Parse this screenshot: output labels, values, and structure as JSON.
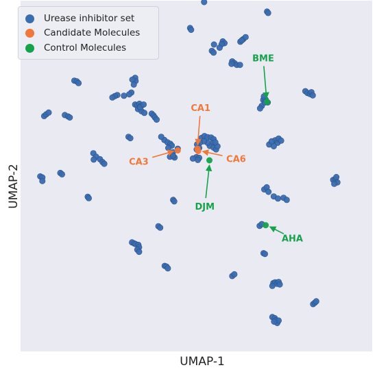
{
  "chart_data": {
    "type": "scatter",
    "title": "",
    "xlabel": "UMAP-1",
    "ylabel": "UMAP-2",
    "xlim": [
      0,
      100
    ],
    "ylim": [
      0,
      100
    ],
    "grid": false,
    "legend_position": "top-left",
    "colors": {
      "background": "#eaeaf2",
      "urease": "#3a6db0",
      "candidate": "#f0783a",
      "control": "#15a24a"
    },
    "series": [
      {
        "name": "Urease inhibitor set",
        "color": "#3a6db0",
        "points": [
          [
            52.2,
            99.6
          ],
          [
            48.2,
            92.2
          ],
          [
            48.5,
            91.7
          ],
          [
            70.1,
            96.9
          ],
          [
            70.4,
            96.5
          ],
          [
            57.5,
            88.4
          ],
          [
            58.0,
            87.9
          ],
          [
            57.2,
            87.6
          ],
          [
            56.6,
            86.6
          ],
          [
            55.0,
            87.5
          ],
          [
            54.4,
            85.7
          ],
          [
            54.9,
            85.2
          ],
          [
            62.5,
            88.3
          ],
          [
            63.3,
            89.0
          ],
          [
            64.0,
            89.6
          ],
          [
            62.9,
            88.7
          ],
          [
            60.2,
            82.7
          ],
          [
            60.8,
            82.2
          ],
          [
            61.5,
            81.7
          ],
          [
            62.4,
            81.7
          ],
          [
            60.0,
            82.0
          ],
          [
            15.3,
            77.2
          ],
          [
            16.0,
            77.0
          ],
          [
            16.5,
            76.5
          ],
          [
            32.6,
            78.0
          ],
          [
            32.7,
            77.1
          ],
          [
            31.8,
            77.5
          ],
          [
            32.2,
            76.1
          ],
          [
            31.5,
            73.8
          ],
          [
            30.9,
            73.3
          ],
          [
            29.4,
            72.9
          ],
          [
            27.5,
            73.1
          ],
          [
            26.8,
            72.8
          ],
          [
            26.1,
            72.4
          ],
          [
            32.6,
            70.4
          ],
          [
            33.2,
            70.1
          ],
          [
            33.8,
            70.6
          ],
          [
            34.3,
            70.0
          ],
          [
            33.4,
            69.1
          ],
          [
            34.4,
            68.5
          ],
          [
            35.2,
            68.0
          ],
          [
            34.0,
            69.6
          ],
          [
            35.0,
            70.4
          ],
          [
            37.3,
            67.8
          ],
          [
            37.8,
            67.3
          ],
          [
            38.2,
            66.7
          ],
          [
            38.7,
            66.1
          ],
          [
            6.7,
            67.1
          ],
          [
            7.3,
            67.6
          ],
          [
            8.0,
            68.1
          ],
          [
            12.6,
            67.4
          ],
          [
            13.5,
            67.0
          ],
          [
            14.0,
            66.7
          ],
          [
            30.7,
            61.2
          ],
          [
            31.2,
            60.8
          ],
          [
            40.9,
            60.3
          ],
          [
            40.0,
            61.2
          ],
          [
            41.8,
            59.6
          ],
          [
            42.6,
            59.2
          ],
          [
            44.7,
            57.8
          ],
          [
            43.0,
            58.7
          ],
          [
            42.0,
            58.0
          ],
          [
            43.3,
            56.8
          ],
          [
            43.8,
            55.3
          ],
          [
            42.5,
            55.5
          ],
          [
            43.4,
            55.8
          ],
          [
            51.5,
            60.9
          ],
          [
            52.3,
            61.4
          ],
          [
            53.2,
            61.1
          ],
          [
            54.2,
            61.0
          ],
          [
            54.9,
            60.5
          ],
          [
            54.6,
            59.4
          ],
          [
            53.8,
            58.6
          ],
          [
            53.2,
            59.5
          ],
          [
            52.1,
            59.9
          ],
          [
            51.0,
            59.5
          ],
          [
            50.2,
            59.0
          ],
          [
            50.8,
            58.0
          ],
          [
            50.1,
            57.6
          ],
          [
            54.9,
            58.1
          ],
          [
            55.6,
            57.6
          ],
          [
            56.0,
            58.5
          ],
          [
            55.4,
            59.6
          ],
          [
            50.0,
            55.4
          ],
          [
            50.8,
            55.2
          ],
          [
            50.4,
            54.6
          ],
          [
            49.0,
            55.0
          ],
          [
            20.7,
            56.5
          ],
          [
            21.5,
            55.5
          ],
          [
            22.6,
            54.8
          ],
          [
            23.3,
            54.0
          ],
          [
            23.8,
            53.5
          ],
          [
            20.8,
            54.7
          ],
          [
            11.3,
            50.9
          ],
          [
            11.8,
            50.5
          ],
          [
            5.6,
            49.9
          ],
          [
            6.2,
            49.6
          ],
          [
            6.2,
            48.6
          ],
          [
            43.4,
            43.2
          ],
          [
            43.7,
            42.8
          ],
          [
            19.1,
            44.1
          ],
          [
            19.4,
            43.7
          ],
          [
            39.2,
            35.7
          ],
          [
            39.7,
            35.3
          ],
          [
            31.7,
            31.1
          ],
          [
            32.3,
            30.8
          ],
          [
            32.7,
            30.6
          ],
          [
            33.5,
            30.4
          ],
          [
            33.7,
            29.7
          ],
          [
            33.2,
            29.0
          ],
          [
            33.7,
            28.4
          ],
          [
            41.0,
            24.4
          ],
          [
            41.5,
            24.2
          ],
          [
            41.9,
            23.7
          ],
          [
            72.4,
            60.2
          ],
          [
            73.1,
            59.5
          ],
          [
            73.4,
            60.7
          ],
          [
            74.1,
            60.1
          ],
          [
            70.7,
            59.0
          ],
          [
            72.0,
            58.5
          ],
          [
            71.4,
            59.9
          ],
          [
            68.6,
            70.0
          ],
          [
            69.0,
            71.7
          ],
          [
            69.5,
            71.0
          ],
          [
            69.7,
            71.8
          ],
          [
            70.3,
            71.0
          ],
          [
            69.2,
            72.7
          ],
          [
            68.1,
            69.3
          ],
          [
            81.0,
            74.2
          ],
          [
            81.6,
            73.7
          ],
          [
            82.3,
            73.4
          ],
          [
            82.7,
            73.9
          ],
          [
            83.1,
            73.0
          ],
          [
            69.3,
            46.2
          ],
          [
            70.0,
            46.8
          ],
          [
            70.5,
            45.5
          ],
          [
            72.0,
            44.2
          ],
          [
            73.2,
            43.6
          ],
          [
            74.8,
            43.8
          ],
          [
            75.7,
            43.2
          ],
          [
            68.0,
            35.8
          ],
          [
            68.6,
            36.3
          ],
          [
            69.1,
            28.0
          ],
          [
            69.5,
            27.8
          ],
          [
            60.2,
            21.5
          ],
          [
            60.8,
            22.0
          ],
          [
            71.9,
            19.5
          ],
          [
            72.4,
            19.7
          ],
          [
            72.9,
            19.3
          ],
          [
            73.4,
            19.8
          ],
          [
            73.7,
            19.1
          ],
          [
            71.6,
            18.7
          ],
          [
            88.9,
            48.9
          ],
          [
            89.6,
            49.1
          ],
          [
            90.1,
            48.2
          ],
          [
            89.2,
            47.8
          ],
          [
            89.8,
            49.7
          ],
          [
            83.2,
            13.5
          ],
          [
            83.7,
            13.9
          ],
          [
            84.1,
            14.3
          ],
          [
            71.6,
            9.8
          ],
          [
            72.3,
            9.5
          ],
          [
            72.6,
            8.9
          ],
          [
            73.0,
            8.1
          ],
          [
            73.4,
            8.8
          ],
          [
            72.1,
            8.5
          ]
        ]
      },
      {
        "name": "Candidate Molecules",
        "color": "#f0783a",
        "points": [
          [
            44.7,
            57.3
          ],
          [
            50.5,
            57.1
          ],
          [
            50.3,
            57.8
          ]
        ]
      },
      {
        "name": "Control Molecules",
        "color": "#15a24a",
        "points": [
          [
            70.1,
            71.2
          ],
          [
            53.7,
            54.5
          ],
          [
            69.7,
            36.0
          ]
        ]
      }
    ],
    "annotations": [
      {
        "text": "BME",
        "color": "#15a24a",
        "x": 69.0,
        "y": 83.7,
        "tx": 70.0,
        "ty": 71.4
      },
      {
        "text": "CA1",
        "color": "#f0783a",
        "x": 51.2,
        "y": 69.5,
        "tx": 50.3,
        "ty": 58.1
      },
      {
        "text": "CA3",
        "color": "#f0783a",
        "x": 33.6,
        "y": 54.2,
        "tx": 44.3,
        "ty": 57.3
      },
      {
        "text": "CA6",
        "color": "#f0783a",
        "x": 61.3,
        "y": 55.0,
        "tx": 51.0,
        "ty": 57.2
      },
      {
        "text": "DJM",
        "color": "#15a24a",
        "x": 52.4,
        "y": 41.4,
        "tx": 53.8,
        "ty": 53.9
      },
      {
        "text": "AHA",
        "color": "#15a24a",
        "x": 77.3,
        "y": 32.3,
        "tx": 70.2,
        "ty": 35.9
      }
    ]
  }
}
